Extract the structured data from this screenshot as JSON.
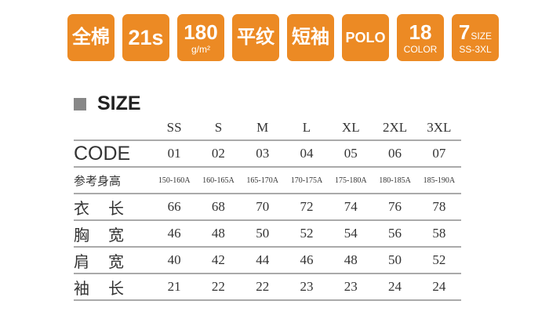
{
  "badges": {
    "cotton": "全棉",
    "yarn": "21s",
    "weight": "180",
    "weight_unit": "g/m²",
    "weave": "平纹",
    "sleeve": "短袖",
    "style": "POLO",
    "colors": "18",
    "colors_label": "COLOR",
    "sizes": "7",
    "sizes_label": "SIZE",
    "sizes_range": "SS-3XL"
  },
  "section_title": "SIZE",
  "table": {
    "sizes": [
      "SS",
      "S",
      "M",
      "L",
      "XL",
      "2XL",
      "3XL"
    ],
    "code_label": "CODE",
    "codes": [
      "01",
      "02",
      "03",
      "04",
      "05",
      "06",
      "07"
    ],
    "height_label": "参考身高",
    "heights": [
      "150-160A",
      "160-165A",
      "165-170A",
      "170-175A",
      "175-180A",
      "180-185A",
      "185-190A"
    ],
    "rows": [
      {
        "label": [
          "衣",
          "长"
        ],
        "values": [
          "66",
          "68",
          "70",
          "72",
          "74",
          "76",
          "78"
        ]
      },
      {
        "label": [
          "胸",
          "宽"
        ],
        "values": [
          "46",
          "48",
          "50",
          "52",
          "54",
          "56",
          "58"
        ]
      },
      {
        "label": [
          "肩",
          "宽"
        ],
        "values": [
          "40",
          "42",
          "44",
          "46",
          "48",
          "50",
          "52"
        ]
      },
      {
        "label": [
          "袖",
          "长"
        ],
        "values": [
          "21",
          "22",
          "22",
          "23",
          "23",
          "24",
          "24"
        ]
      }
    ]
  },
  "colors": {
    "badge": "#ec8a24"
  }
}
